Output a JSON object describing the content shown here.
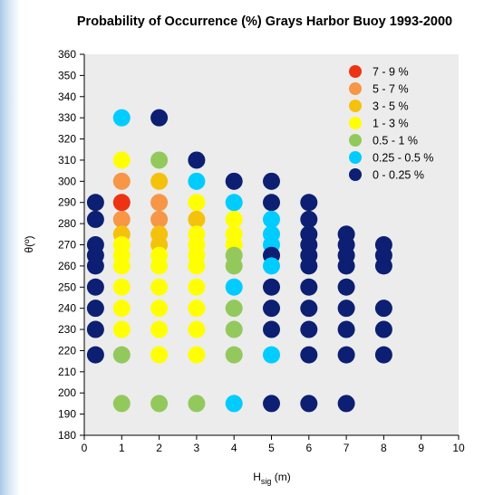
{
  "chart_data": {
    "type": "scatter",
    "title": "Probability of Occurrence (%) Grays Harbor Buoy 1993-2000",
    "xlabel": "H",
    "xlabel_sub": "sig",
    "xlabel_unit": " (m)",
    "ylabel": "θ(º)",
    "xlim": [
      0,
      10
    ],
    "ylim": [
      180,
      360
    ],
    "x_ticks": [
      "0",
      "1",
      "2",
      "3",
      "4",
      "5",
      "6",
      "7",
      "8",
      "9",
      "10"
    ],
    "y_ticks": [
      "180",
      "190",
      "200",
      "210",
      "220",
      "230",
      "240",
      "250",
      "260",
      "270",
      "280",
      "290",
      "300",
      "310",
      "320",
      "330",
      "340",
      "350",
      "360"
    ],
    "grid": false,
    "plot_background": "#ececec",
    "legend_position": "top-right",
    "legend": [
      {
        "label": "7 - 9 %",
        "color": "#ec3412"
      },
      {
        "label": "5 - 7 %",
        "color": "#f79646"
      },
      {
        "label": "3 - 5 %",
        "color": "#f4c20d"
      },
      {
        "label": "1 - 3 %",
        "color": "#ffff00"
      },
      {
        "label": "0.5 - 1 %",
        "color": "#93c95c"
      },
      {
        "label": "0.25 - 0.5 %",
        "color": "#00ccff"
      },
      {
        "label": "0 - 0.25 %",
        "color": "#0c1f72"
      }
    ],
    "points": [
      {
        "x": 0.3,
        "y": 290,
        "c": 6
      },
      {
        "x": 0.3,
        "y": 282,
        "c": 6
      },
      {
        "x": 0.3,
        "y": 270,
        "c": 6
      },
      {
        "x": 0.3,
        "y": 265,
        "c": 6
      },
      {
        "x": 0.3,
        "y": 260,
        "c": 6
      },
      {
        "x": 0.3,
        "y": 250,
        "c": 6
      },
      {
        "x": 0.3,
        "y": 240,
        "c": 6
      },
      {
        "x": 0.3,
        "y": 230,
        "c": 6
      },
      {
        "x": 0.3,
        "y": 218,
        "c": 6
      },
      {
        "x": 1,
        "y": 330,
        "c": 5
      },
      {
        "x": 1,
        "y": 310,
        "c": 3
      },
      {
        "x": 1,
        "y": 300,
        "c": 1
      },
      {
        "x": 1,
        "y": 290,
        "c": 0
      },
      {
        "x": 1,
        "y": 282,
        "c": 1
      },
      {
        "x": 1,
        "y": 275,
        "c": 2
      },
      {
        "x": 1,
        "y": 270,
        "c": 3
      },
      {
        "x": 1,
        "y": 265,
        "c": 3
      },
      {
        "x": 1,
        "y": 260,
        "c": 3
      },
      {
        "x": 1,
        "y": 250,
        "c": 3
      },
      {
        "x": 1,
        "y": 240,
        "c": 3
      },
      {
        "x": 1,
        "y": 230,
        "c": 3
      },
      {
        "x": 1,
        "y": 218,
        "c": 4
      },
      {
        "x": 1,
        "y": 195,
        "c": 4
      },
      {
        "x": 2,
        "y": 330,
        "c": 6
      },
      {
        "x": 2,
        "y": 310,
        "c": 4
      },
      {
        "x": 2,
        "y": 300,
        "c": 2
      },
      {
        "x": 2,
        "y": 290,
        "c": 1
      },
      {
        "x": 2,
        "y": 282,
        "c": 1
      },
      {
        "x": 2,
        "y": 275,
        "c": 2
      },
      {
        "x": 2,
        "y": 270,
        "c": 2
      },
      {
        "x": 2,
        "y": 265,
        "c": 3
      },
      {
        "x": 2,
        "y": 260,
        "c": 3
      },
      {
        "x": 2,
        "y": 250,
        "c": 3
      },
      {
        "x": 2,
        "y": 240,
        "c": 3
      },
      {
        "x": 2,
        "y": 230,
        "c": 3
      },
      {
        "x": 2,
        "y": 218,
        "c": 3
      },
      {
        "x": 2,
        "y": 195,
        "c": 4
      },
      {
        "x": 3,
        "y": 310,
        "c": 6
      },
      {
        "x": 3,
        "y": 300,
        "c": 5
      },
      {
        "x": 3,
        "y": 290,
        "c": 3
      },
      {
        "x": 3,
        "y": 282,
        "c": 2
      },
      {
        "x": 3,
        "y": 275,
        "c": 3
      },
      {
        "x": 3,
        "y": 270,
        "c": 3
      },
      {
        "x": 3,
        "y": 265,
        "c": 3
      },
      {
        "x": 3,
        "y": 260,
        "c": 3
      },
      {
        "x": 3,
        "y": 250,
        "c": 3
      },
      {
        "x": 3,
        "y": 240,
        "c": 3
      },
      {
        "x": 3,
        "y": 230,
        "c": 3
      },
      {
        "x": 3,
        "y": 218,
        "c": 3
      },
      {
        "x": 3,
        "y": 195,
        "c": 4
      },
      {
        "x": 4,
        "y": 300,
        "c": 6
      },
      {
        "x": 4,
        "y": 290,
        "c": 5
      },
      {
        "x": 4,
        "y": 282,
        "c": 3
      },
      {
        "x": 4,
        "y": 275,
        "c": 3
      },
      {
        "x": 4,
        "y": 270,
        "c": 3
      },
      {
        "x": 4,
        "y": 265,
        "c": 4
      },
      {
        "x": 4,
        "y": 260,
        "c": 4
      },
      {
        "x": 4,
        "y": 250,
        "c": 5
      },
      {
        "x": 4,
        "y": 240,
        "c": 4
      },
      {
        "x": 4,
        "y": 230,
        "c": 4
      },
      {
        "x": 4,
        "y": 218,
        "c": 4
      },
      {
        "x": 4,
        "y": 195,
        "c": 5
      },
      {
        "x": 5,
        "y": 300,
        "c": 6
      },
      {
        "x": 5,
        "y": 290,
        "c": 6
      },
      {
        "x": 5,
        "y": 282,
        "c": 5
      },
      {
        "x": 5,
        "y": 275,
        "c": 5
      },
      {
        "x": 5,
        "y": 270,
        "c": 5
      },
      {
        "x": 5,
        "y": 265,
        "c": 6
      },
      {
        "x": 5,
        "y": 260,
        "c": 5
      },
      {
        "x": 5,
        "y": 250,
        "c": 6
      },
      {
        "x": 5,
        "y": 240,
        "c": 6
      },
      {
        "x": 5,
        "y": 230,
        "c": 6
      },
      {
        "x": 5,
        "y": 218,
        "c": 5
      },
      {
        "x": 5,
        "y": 195,
        "c": 6
      },
      {
        "x": 6,
        "y": 290,
        "c": 6
      },
      {
        "x": 6,
        "y": 282,
        "c": 6
      },
      {
        "x": 6,
        "y": 275,
        "c": 6
      },
      {
        "x": 6,
        "y": 270,
        "c": 6
      },
      {
        "x": 6,
        "y": 265,
        "c": 6
      },
      {
        "x": 6,
        "y": 260,
        "c": 6
      },
      {
        "x": 6,
        "y": 250,
        "c": 6
      },
      {
        "x": 6,
        "y": 240,
        "c": 6
      },
      {
        "x": 6,
        "y": 230,
        "c": 6
      },
      {
        "x": 6,
        "y": 218,
        "c": 6
      },
      {
        "x": 6,
        "y": 195,
        "c": 6
      },
      {
        "x": 7,
        "y": 275,
        "c": 6
      },
      {
        "x": 7,
        "y": 270,
        "c": 6
      },
      {
        "x": 7,
        "y": 265,
        "c": 6
      },
      {
        "x": 7,
        "y": 260,
        "c": 6
      },
      {
        "x": 7,
        "y": 250,
        "c": 6
      },
      {
        "x": 7,
        "y": 240,
        "c": 6
      },
      {
        "x": 7,
        "y": 230,
        "c": 6
      },
      {
        "x": 7,
        "y": 218,
        "c": 6
      },
      {
        "x": 7,
        "y": 195,
        "c": 6
      },
      {
        "x": 8,
        "y": 270,
        "c": 6
      },
      {
        "x": 8,
        "y": 265,
        "c": 6
      },
      {
        "x": 8,
        "y": 260,
        "c": 6
      },
      {
        "x": 8,
        "y": 240,
        "c": 6
      },
      {
        "x": 8,
        "y": 230,
        "c": 6
      },
      {
        "x": 8,
        "y": 218,
        "c": 6
      }
    ]
  }
}
